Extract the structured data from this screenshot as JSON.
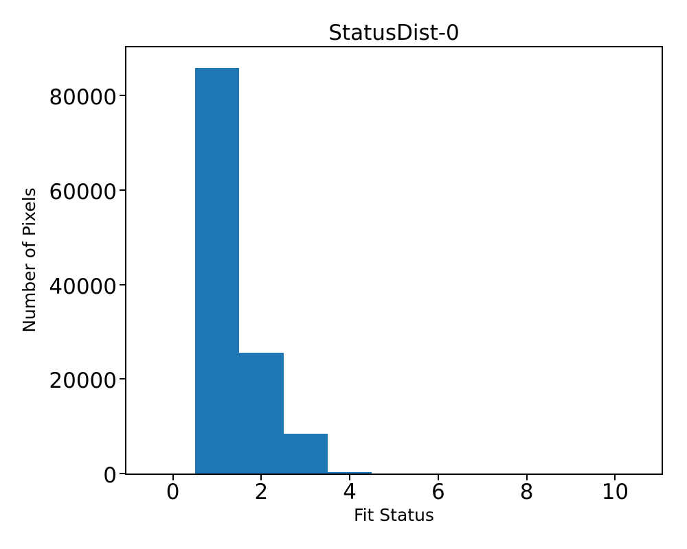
{
  "chart_data": {
    "type": "bar",
    "subtype": "histogram",
    "title": "StatusDist-0",
    "xlabel": "Fit Status",
    "ylabel": "Number of Pixels",
    "bar_color": "#1f77b4",
    "background_color": "#ffffff",
    "spine_color": "#000000",
    "text_color": "#000000",
    "bin_centers": [
      0,
      1,
      2,
      3,
      4,
      5,
      6,
      7,
      8,
      9,
      10
    ],
    "bin_width": 1,
    "counts": [
      0,
      85900,
      25550,
      8370,
      360,
      0,
      0,
      0,
      0,
      0,
      0
    ],
    "xlim": [
      -1.05,
      11.05
    ],
    "ylim": [
      0,
      90195
    ],
    "xticks": [
      0,
      2,
      4,
      6,
      8,
      10
    ],
    "yticks": [
      0,
      20000,
      40000,
      60000,
      80000
    ],
    "grid": false,
    "legend_position": "none"
  }
}
